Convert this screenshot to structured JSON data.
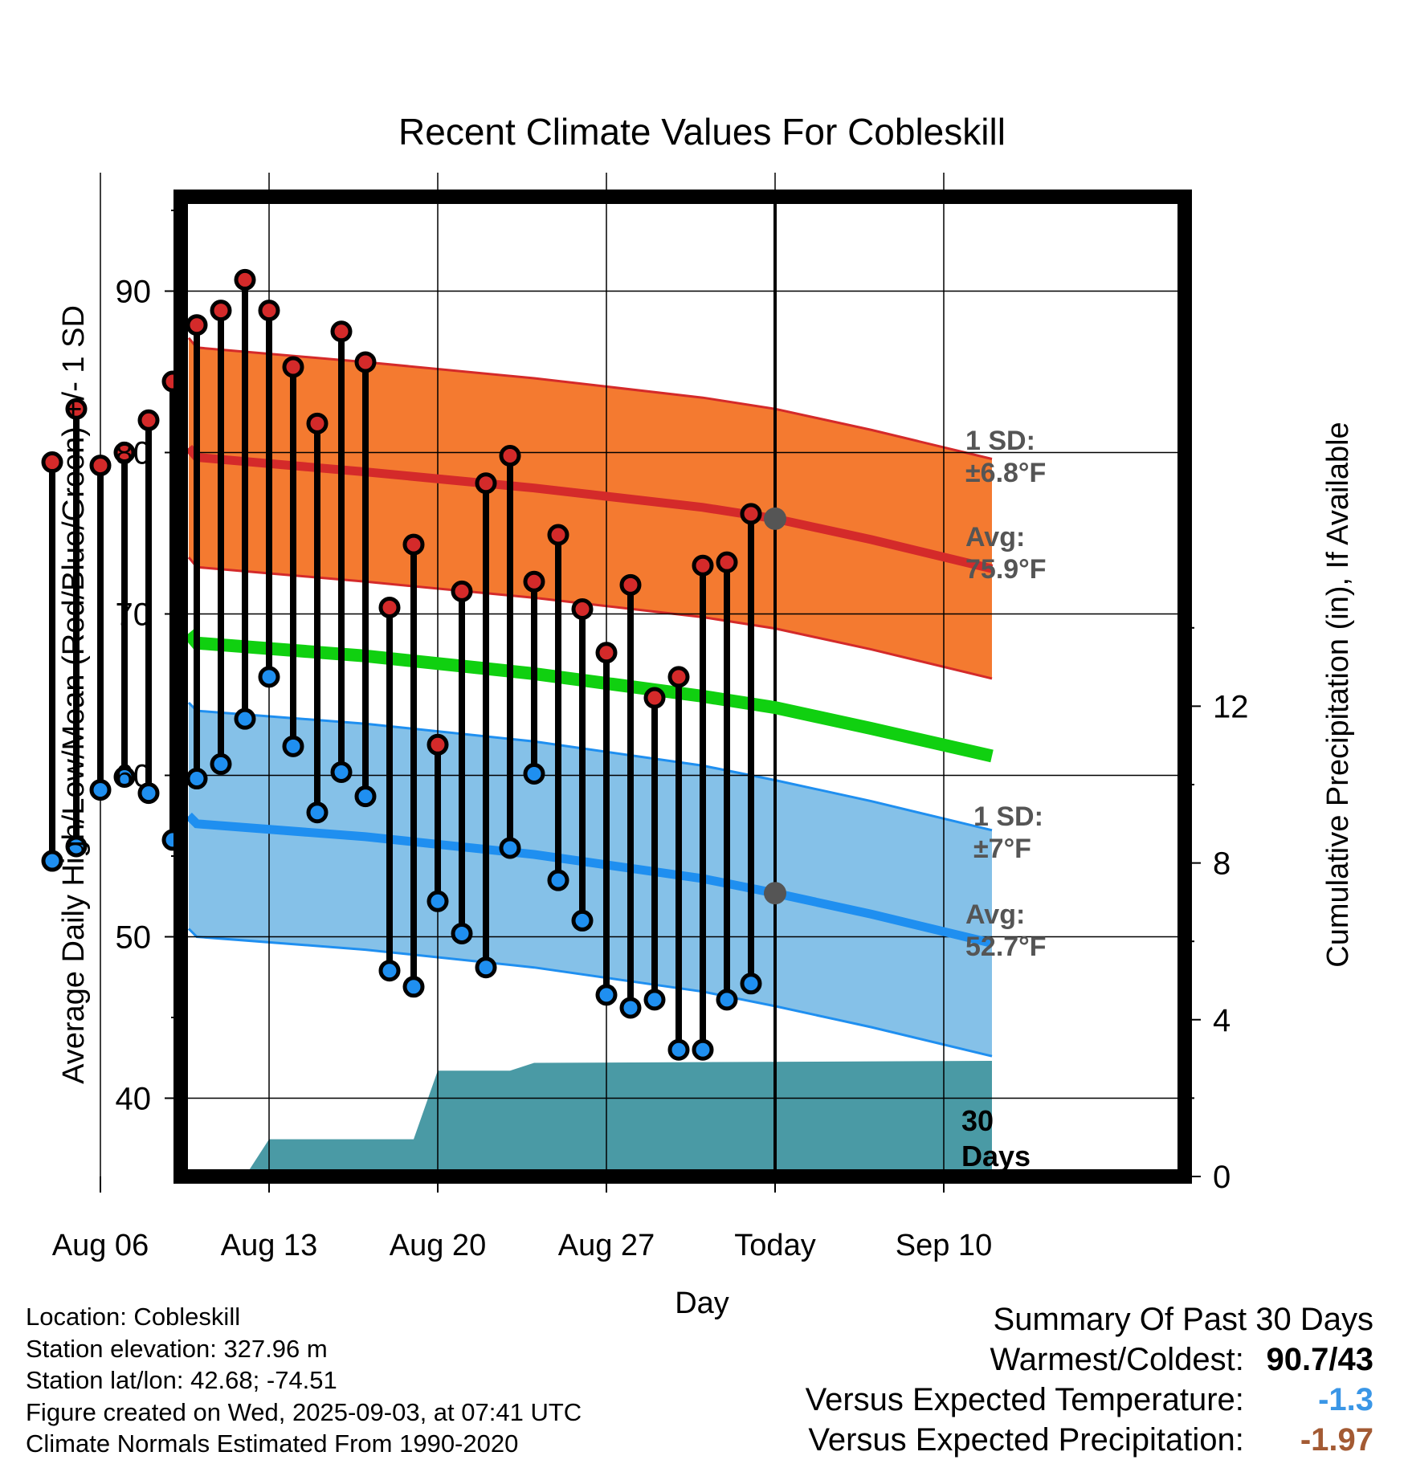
{
  "chart_data": {
    "type": "line",
    "title": "Recent Climate Values For Cobleskill",
    "xlabel": "Day",
    "ylabel": "Average Daily High/Low/Mean (Red/Blue/Green) +/- 1 SD",
    "y2label": "Cumulative Precipitation (in), If Available",
    "ylim": [
      35,
      96
    ],
    "y2lim": [
      0,
      21.7
    ],
    "yticks": [
      "40",
      "50",
      "60",
      "70",
      "80",
      "90"
    ],
    "y2ticks": [
      "0",
      "4",
      "8",
      "12"
    ],
    "x_start": "Aug 03",
    "x_tick_labels": [
      "Aug 06",
      "Aug 13",
      "Aug 20",
      "Aug 27",
      "Today",
      "Sep 10"
    ],
    "x_tick_days": [
      "Aug 06",
      "Aug 13",
      "Aug 20",
      "Aug 27",
      "Sep 03",
      "Sep 10"
    ],
    "today": "Sep 03",
    "grid": true,
    "series": [
      {
        "name": "High",
        "color": "#d42a2a",
        "x": [
          "Aug 04",
          "Aug 05",
          "Aug 06",
          "Aug 07",
          "Aug 08",
          "Aug 09",
          "Aug 10",
          "Aug 11",
          "Aug 12",
          "Aug 13",
          "Aug 14",
          "Aug 15",
          "Aug 16",
          "Aug 17",
          "Aug 18",
          "Aug 19",
          "Aug 20",
          "Aug 21",
          "Aug 22",
          "Aug 23",
          "Aug 24",
          "Aug 25",
          "Aug 26",
          "Aug 27",
          "Aug 28",
          "Aug 29",
          "Aug 30",
          "Aug 31",
          "Sep 01",
          "Sep 02"
        ],
        "values": [
          79.4,
          82.7,
          79.2,
          80.0,
          82.0,
          84.4,
          87.9,
          88.8,
          90.7,
          88.8,
          85.3,
          81.8,
          87.5,
          85.6,
          70.4,
          74.3,
          61.9,
          71.4,
          78.1,
          79.8,
          72.0,
          74.9,
          70.3,
          67.6,
          71.8,
          64.8,
          66.1,
          73.0,
          73.2,
          76.2
        ]
      },
      {
        "name": "Low",
        "color": "#1f8ff0",
        "x": [
          "Aug 04",
          "Aug 05",
          "Aug 06",
          "Aug 07",
          "Aug 08",
          "Aug 09",
          "Aug 10",
          "Aug 11",
          "Aug 12",
          "Aug 13",
          "Aug 14",
          "Aug 15",
          "Aug 16",
          "Aug 17",
          "Aug 18",
          "Aug 19",
          "Aug 20",
          "Aug 21",
          "Aug 22",
          "Aug 23",
          "Aug 24",
          "Aug 25",
          "Aug 26",
          "Aug 27",
          "Aug 28",
          "Aug 29",
          "Aug 30",
          "Aug 31",
          "Sep 01",
          "Sep 02"
        ],
        "values": [
          54.7,
          55.6,
          59.1,
          59.9,
          58.9,
          56.0,
          59.8,
          60.7,
          63.5,
          66.1,
          61.8,
          57.7,
          60.2,
          58.7,
          47.9,
          46.9,
          52.2,
          50.2,
          48.1,
          55.5,
          60.1,
          53.5,
          51.0,
          46.4,
          45.6,
          46.1,
          43.0,
          43.0,
          46.1,
          47.1
        ]
      },
      {
        "name": "Normal High",
        "color": "#d42a2a",
        "x": [
          "Aug 03",
          "Aug 10",
          "Aug 17",
          "Aug 24",
          "Aug 31",
          "Sep 03",
          "Sep 07",
          "Sep 12"
        ],
        "values": [
          80.3,
          79.7,
          78.8,
          77.8,
          76.6,
          75.9,
          74.6,
          72.8
        ],
        "sd": 6.8
      },
      {
        "name": "Normal Low",
        "color": "#1f8ff0",
        "x": [
          "Aug 03",
          "Aug 10",
          "Aug 17",
          "Aug 24",
          "Aug 31",
          "Sep 03",
          "Sep 07",
          "Sep 12"
        ],
        "values": [
          57.5,
          57.0,
          56.2,
          55.1,
          53.6,
          52.7,
          51.4,
          49.6
        ],
        "sd": 7
      },
      {
        "name": "Normal Mean",
        "color": "#10d010",
        "x": [
          "Aug 03",
          "Aug 10",
          "Aug 17",
          "Aug 24",
          "Aug 31",
          "Sep 03",
          "Sep 07",
          "Sep 12"
        ],
        "values": [
          68.8,
          68.2,
          67.4,
          66.3,
          64.9,
          64.2,
          62.9,
          61.2
        ]
      },
      {
        "name": "Cumulative Precipitation",
        "color": "#4a9aa5",
        "axis": "y2",
        "x": [
          "Aug 03",
          "Aug 12",
          "Aug 13",
          "Aug 19",
          "Aug 20",
          "Aug 23",
          "Aug 24",
          "Sep 12"
        ],
        "values": [
          0,
          0,
          0.95,
          0.95,
          2.7,
          2.7,
          2.9,
          2.95
        ]
      }
    ],
    "annotations": {
      "high_sd": [
        "1 SD:",
        "±6.8°F"
      ],
      "high_avg": [
        "Avg:",
        "75.9°F"
      ],
      "low_sd": [
        "1 SD:",
        "±7°F"
      ],
      "low_avg": [
        "Avg:",
        "52.7°F"
      ],
      "days": [
        "30",
        "Days"
      ]
    }
  },
  "footer": {
    "location": "Location: Cobleskill",
    "elevation": "Station elevation: 327.96 m",
    "latlon": "Station lat/lon: 42.68; -74.51",
    "created": "Figure created on Wed, 2025-09-03, at 07:41 UTC",
    "normals": "Climate Normals Estimated From 1990-2020"
  },
  "summary": {
    "title": "Summary Of Past 30 Days",
    "warmest_label": "Warmest/Coldest:",
    "warmest_value": "90.7/43",
    "temp_label": "Versus Expected Temperature:",
    "temp_value": "-1.3",
    "temp_color": "#3a96e6",
    "precip_label": "Versus Expected Precipitation:",
    "precip_value": "-1.97",
    "precip_color": "#a35a33"
  }
}
